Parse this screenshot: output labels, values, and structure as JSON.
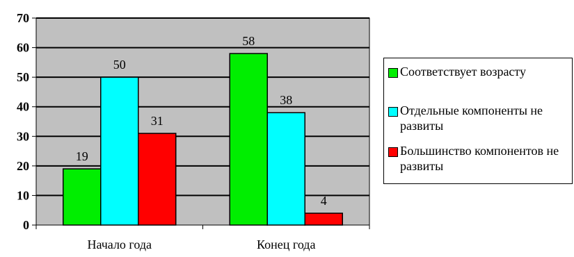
{
  "chart_data": {
    "type": "bar",
    "categories": [
      "Начало года",
      "Конец года"
    ],
    "series": [
      {
        "name": "Соответствует возрасту",
        "color": "#00ee00",
        "values": [
          19,
          58
        ]
      },
      {
        "name": "Отдельные компоненты не развиты",
        "color": "#00ffff",
        "values": [
          50,
          38
        ]
      },
      {
        "name": "Большинство компонентов не развиты",
        "color": "#ff0000",
        "values": [
          31,
          4
        ]
      }
    ],
    "ylim": [
      0,
      70
    ],
    "yticks": [
      0,
      10,
      20,
      30,
      40,
      50,
      60,
      70
    ],
    "plot_background": "#c0c0c0",
    "grid": true,
    "data_labels": true,
    "legend_position": "right"
  }
}
